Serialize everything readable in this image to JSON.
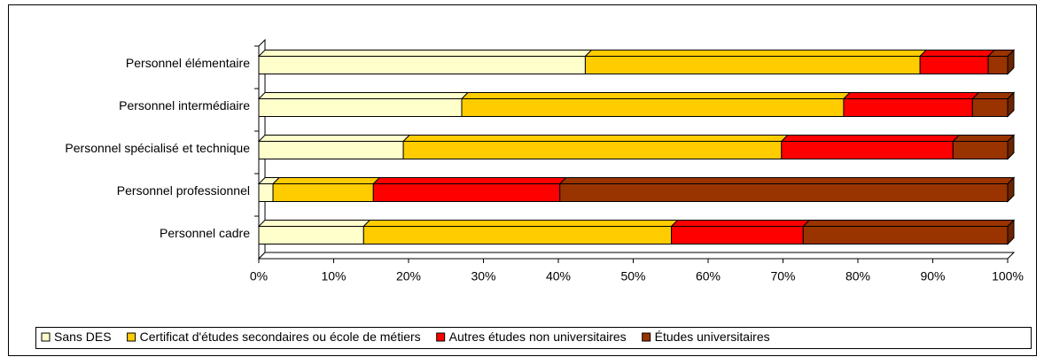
{
  "chart_data": {
    "type": "stacked-bar-horizontal-3d",
    "categories": [
      "Personnel élémentaire",
      "Personnel intermédiaire",
      "Personnel spécialisé et technique",
      "Personnel professionnel",
      "Personnel cadre"
    ],
    "series": [
      {
        "name": "Sans DES",
        "color": "#FFFFCC",
        "values": [
          43.6,
          27.1,
          19.3,
          1.9,
          14.0
        ]
      },
      {
        "name": "Certificat d'études secondaires ou école de métiers",
        "color": "#FFCC00",
        "values": [
          44.7,
          51.0,
          50.5,
          13.4,
          41.1
        ]
      },
      {
        "name": "Autres études non universitaires",
        "color": "#FF0000",
        "values": [
          9.1,
          17.2,
          22.9,
          24.9,
          17.6
        ]
      },
      {
        "name": "Études universitaires",
        "color": "#993300",
        "values": [
          2.6,
          4.7,
          7.3,
          59.8,
          27.3
        ]
      }
    ],
    "xlim": [
      0,
      100
    ],
    "xticks": [
      {
        "value": 0,
        "label": "0%"
      },
      {
        "value": 10,
        "label": "10%"
      },
      {
        "value": 20,
        "label": "20%"
      },
      {
        "value": 30,
        "label": "30%"
      },
      {
        "value": 40,
        "label": "40%"
      },
      {
        "value": 50,
        "label": "50%"
      },
      {
        "value": 60,
        "label": "60%"
      },
      {
        "value": 70,
        "label": "70%"
      },
      {
        "value": 80,
        "label": "80%"
      },
      {
        "value": 90,
        "label": "90%"
      },
      {
        "value": 100,
        "label": "100%"
      }
    ],
    "legend": "bottom"
  }
}
